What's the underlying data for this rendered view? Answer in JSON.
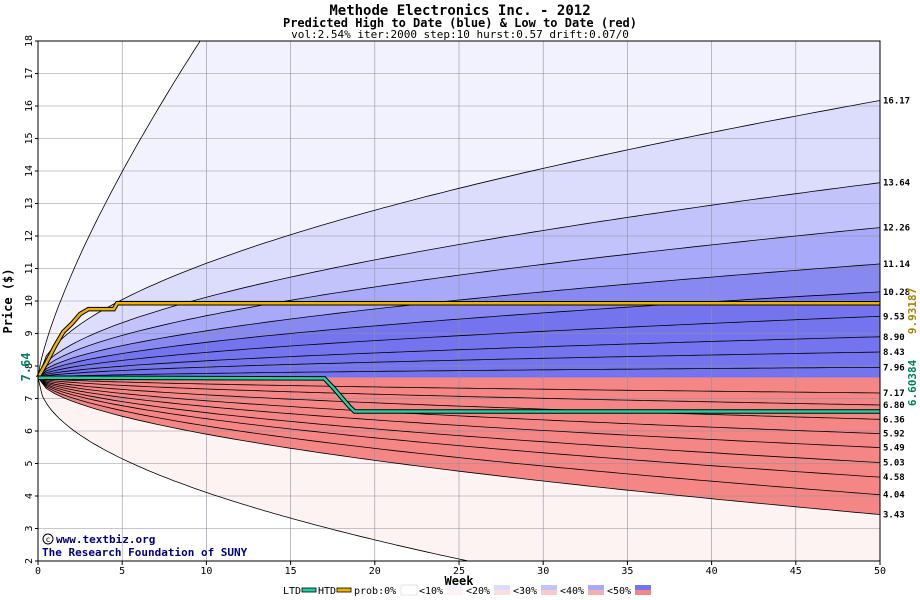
{
  "chart_data": {
    "type": "area",
    "title": "Methode Electronics Inc. - 2012",
    "subtitle": "Predicted High to Date (blue) &  Low to Date (red)",
    "params": "vol:2.54% iter:2000 step:10 hurst:0.57 drift:0.07/0",
    "xlabel": "Week",
    "ylabel": "Price ($)",
    "xlim": [
      0,
      50
    ],
    "ylim": [
      2,
      18
    ],
    "x_ticks": [
      0,
      5,
      10,
      15,
      20,
      25,
      30,
      35,
      40,
      45,
      50
    ],
    "y_ticks": [
      2,
      3,
      4,
      5,
      6,
      7,
      8,
      9,
      10,
      11,
      12,
      13,
      14,
      15,
      16,
      17,
      18
    ],
    "grid": true,
    "start_price": 7.64,
    "start_label": "7.64",
    "high_side_end_values": [
      16.17,
      13.64,
      12.26,
      11.14,
      10.28,
      9.53,
      8.9,
      8.43,
      7.96
    ],
    "high_side_end_labels": [
      "16.17",
      "13.64",
      "12.26",
      "11.14",
      "10.28",
      "9.53",
      "8.90",
      "8.43",
      "7.96"
    ],
    "low_side_end_values": [
      7.17,
      6.8,
      6.36,
      5.92,
      5.49,
      5.03,
      4.58,
      4.04,
      3.43
    ],
    "low_side_end_labels": [
      "7.17",
      "6.80",
      "6.36",
      "5.92",
      "5.49",
      "5.03",
      "4.58",
      "4.04",
      "3.43"
    ],
    "htd_series": {
      "name": "HTD",
      "final_label": "9.93187",
      "points": [
        [
          0,
          7.64
        ],
        [
          0.5,
          8.1
        ],
        [
          1,
          8.6
        ],
        [
          1.5,
          9.05
        ],
        [
          2,
          9.3
        ],
        [
          2.5,
          9.6
        ],
        [
          3,
          9.75
        ],
        [
          4.5,
          9.75
        ],
        [
          4.7,
          9.93
        ],
        [
          50,
          9.93
        ]
      ]
    },
    "ltd_series": {
      "name": "LTD",
      "final_label": "6.60384",
      "points": [
        [
          0,
          7.64
        ],
        [
          17,
          7.62
        ],
        [
          17.5,
          7.35
        ],
        [
          18.5,
          6.75
        ],
        [
          18.8,
          6.6
        ],
        [
          50,
          6.6
        ]
      ]
    },
    "band_colors": [
      "#f2f2fe",
      "#dcdcfd",
      "#c3c3fc",
      "#a9a9f9",
      "#8888f1",
      "#7474ee",
      "#fdf3f3",
      "#fcdede",
      "#fbc8c8",
      "#f9aeae",
      "#f48686"
    ],
    "htd_color": "#f0b400",
    "ltd_color": "#20d0a0",
    "credit_line1": "www.textbiz.org",
    "credit_line2": "The Research Foundation of SUNY",
    "legend": {
      "ltd": "LTD",
      "htd": "HTD",
      "prob_label": "prob:0%",
      "items": [
        "<10%",
        "<20%",
        "<30%",
        "<40%",
        "<50%"
      ],
      "colors": [
        "#f2f2fe",
        "#dcdcfd",
        "#c3c3fc",
        "#a9a9f9",
        "#7474ee"
      ],
      "reds": [
        "#fdf3f3",
        "#fcdede",
        "#fbc8c8",
        "#f9aeae",
        "#f48686"
      ]
    }
  }
}
